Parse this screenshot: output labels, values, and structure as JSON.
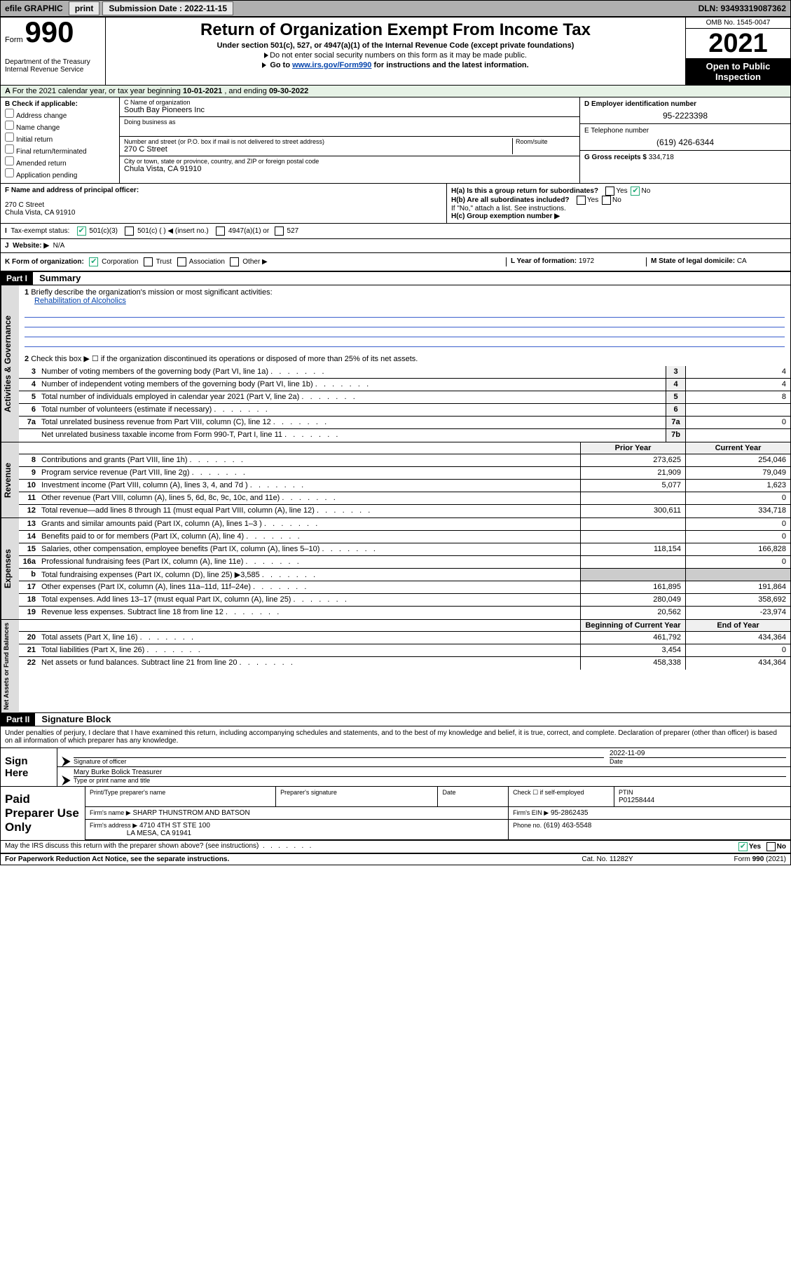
{
  "topbar": {
    "efile_label": "efile GRAPHIC",
    "print_btn": "print",
    "submission_label": "Submission Date : 2022-11-15",
    "dln_label": "DLN: 93493319087362"
  },
  "header": {
    "form_word": "Form",
    "form_number": "990",
    "dept1": "Department of the Treasury",
    "dept2": "Internal Revenue Service",
    "title": "Return of Organization Exempt From Income Tax",
    "subtitle": "Under section 501(c), 527, or 4947(a)(1) of the Internal Revenue Code (except private foundations)",
    "note1": "Do not enter social security numbers on this form as it may be made public.",
    "note2_pre": "Go to ",
    "note2_link": "www.irs.gov/Form990",
    "note2_post": " for instructions and the latest information.",
    "omb": "OMB No. 1545-0047",
    "year": "2021",
    "open_pub": "Open to Public Inspection"
  },
  "row_a": {
    "text_pre": "For the 2021 calendar year, or tax year beginning ",
    "beg": "10-01-2021",
    "mid": " , and ending ",
    "end": "09-30-2022"
  },
  "col_b": {
    "heading": "B Check if applicable:",
    "items": [
      "Address change",
      "Name change",
      "Initial return",
      "Final return/terminated",
      "Amended return",
      "Application pending"
    ]
  },
  "col_c": {
    "c_label": "C Name of organization",
    "c_value": "South Bay Pioneers Inc",
    "dba_label": "Doing business as",
    "dba_value": "",
    "addr_label": "Number and street (or P.O. box if mail is not delivered to street address)",
    "room_label": "Room/suite",
    "addr_value": "270 C Street",
    "city_label": "City or town, state or province, country, and ZIP or foreign postal code",
    "city_value": "Chula Vista, CA  91910"
  },
  "col_d": {
    "d_label": "D Employer identification number",
    "d_value": "95-2223398",
    "e_label": "E Telephone number",
    "e_value": "(619) 426-6344",
    "g_label": "G Gross receipts $",
    "g_value": "334,718"
  },
  "fgh": {
    "f_label": "F Name and address of principal officer:",
    "f_addr1": "270 C Street",
    "f_addr2": "Chula Vista, CA  91910",
    "ha_label": "H(a)  Is this a group return for subordinates?",
    "hb_label": "H(b)  Are all subordinates included?",
    "hb_note": "If \"No,\" attach a list. See instructions.",
    "hc_label": "H(c)  Group exemption number ▶",
    "yes": "Yes",
    "no": "No"
  },
  "ij": {
    "i_label": "Tax-exempt status:",
    "i_501c3": "501(c)(3)",
    "i_501c": "501(c) (   ) ◀ (insert no.)",
    "i_4947": "4947(a)(1) or",
    "i_527": "527",
    "j_label": "Website: ▶",
    "j_value": "N/A"
  },
  "klm": {
    "k_label": "K Form of organization:",
    "k_corp": "Corporation",
    "k_trust": "Trust",
    "k_assoc": "Association",
    "k_other": "Other ▶",
    "l_label": "L Year of formation:",
    "l_value": "1972",
    "m_label": "M State of legal domicile:",
    "m_value": "CA"
  },
  "part1": {
    "hdr": "Part I",
    "title": "Summary",
    "q1_label": "Briefly describe the organization's mission or most significant activities:",
    "q1_value": "Rehabilitation of Alcoholics",
    "q2_label": "Check this box ▶ ☐  if the organization discontinued its operations or disposed of more than 25% of its net assets.",
    "tabs": {
      "gov": "Activities & Governance",
      "rev": "Revenue",
      "exp": "Expenses",
      "net": "Net Assets or Fund Balances"
    },
    "col_prior": "Prior Year",
    "col_curr": "Current Year",
    "col_beg": "Beginning of Current Year",
    "col_end": "End of Year",
    "gov_lines": [
      {
        "n": "3",
        "t": "Number of voting members of the governing body (Part VI, line 1a)",
        "box": "3",
        "v": "4"
      },
      {
        "n": "4",
        "t": "Number of independent voting members of the governing body (Part VI, line 1b)",
        "box": "4",
        "v": "4"
      },
      {
        "n": "5",
        "t": "Total number of individuals employed in calendar year 2021 (Part V, line 2a)",
        "box": "5",
        "v": "8"
      },
      {
        "n": "6",
        "t": "Total number of volunteers (estimate if necessary)",
        "box": "6",
        "v": ""
      },
      {
        "n": "7a",
        "t": "Total unrelated business revenue from Part VIII, column (C), line 12",
        "box": "7a",
        "v": "0"
      },
      {
        "n": "",
        "t": "Net unrelated business taxable income from Form 990-T, Part I, line 11",
        "box": "7b",
        "v": ""
      }
    ],
    "rev_lines": [
      {
        "n": "8",
        "t": "Contributions and grants (Part VIII, line 1h)",
        "p": "273,625",
        "c": "254,046"
      },
      {
        "n": "9",
        "t": "Program service revenue (Part VIII, line 2g)",
        "p": "21,909",
        "c": "79,049"
      },
      {
        "n": "10",
        "t": "Investment income (Part VIII, column (A), lines 3, 4, and 7d )",
        "p": "5,077",
        "c": "1,623"
      },
      {
        "n": "11",
        "t": "Other revenue (Part VIII, column (A), lines 5, 6d, 8c, 9c, 10c, and 11e)",
        "p": "",
        "c": "0"
      },
      {
        "n": "12",
        "t": "Total revenue—add lines 8 through 11 (must equal Part VIII, column (A), line 12)",
        "p": "300,611",
        "c": "334,718"
      }
    ],
    "exp_lines": [
      {
        "n": "13",
        "t": "Grants and similar amounts paid (Part IX, column (A), lines 1–3 )",
        "p": "",
        "c": "0"
      },
      {
        "n": "14",
        "t": "Benefits paid to or for members (Part IX, column (A), line 4)",
        "p": "",
        "c": "0"
      },
      {
        "n": "15",
        "t": "Salaries, other compensation, employee benefits (Part IX, column (A), lines 5–10)",
        "p": "118,154",
        "c": "166,828"
      },
      {
        "n": "16a",
        "t": "Professional fundraising fees (Part IX, column (A), line 11e)",
        "p": "",
        "c": "0"
      },
      {
        "n": "b",
        "t": "Total fundraising expenses (Part IX, column (D), line 25) ▶3,585",
        "p": "GRAY",
        "c": "GRAY"
      },
      {
        "n": "17",
        "t": "Other expenses (Part IX, column (A), lines 11a–11d, 11f–24e)",
        "p": "161,895",
        "c": "191,864"
      },
      {
        "n": "18",
        "t": "Total expenses. Add lines 13–17 (must equal Part IX, column (A), line 25)",
        "p": "280,049",
        "c": "358,692"
      },
      {
        "n": "19",
        "t": "Revenue less expenses. Subtract line 18 from line 12",
        "p": "20,562",
        "c": "-23,974"
      }
    ],
    "net_lines": [
      {
        "n": "20",
        "t": "Total assets (Part X, line 16)",
        "p": "461,792",
        "c": "434,364"
      },
      {
        "n": "21",
        "t": "Total liabilities (Part X, line 26)",
        "p": "3,454",
        "c": "0"
      },
      {
        "n": "22",
        "t": "Net assets or fund balances. Subtract line 21 from line 20",
        "p": "458,338",
        "c": "434,364"
      }
    ]
  },
  "part2": {
    "hdr": "Part II",
    "title": "Signature Block",
    "decl": "Under penalties of perjury, I declare that I have examined this return, including accompanying schedules and statements, and to the best of my knowledge and belief, it is true, correct, and complete. Declaration of preparer (other than officer) is based on all information of which preparer has any knowledge.",
    "sign_here": "Sign Here",
    "sig_officer_lbl": "Signature of officer",
    "sig_date_lbl": "Date",
    "sig_date_val": "2022-11-09",
    "sig_name_val": "Mary Burke Bolick  Treasurer",
    "sig_name_lbl": "Type or print name and title",
    "paid_prep": "Paid Preparer Use Only",
    "pp_name_lbl": "Print/Type preparer's name",
    "pp_sig_lbl": "Preparer's signature",
    "pp_date_lbl": "Date",
    "pp_check_lbl": "Check ☐ if self-employed",
    "pp_ptin_lbl": "PTIN",
    "pp_ptin_val": "P01258444",
    "firm_name_lbl": "Firm's name    ▶",
    "firm_name_val": "SHARP THUNSTROM AND BATSON",
    "firm_ein_lbl": "Firm's EIN ▶",
    "firm_ein_val": "95-2862435",
    "firm_addr_lbl": "Firm's address ▶",
    "firm_addr_val1": "4710 4TH ST STE 100",
    "firm_addr_val2": "LA MESA, CA  91941",
    "firm_phone_lbl": "Phone no.",
    "firm_phone_val": "(619) 463-5548",
    "irs_discuss": "May the IRS discuss this return with the preparer shown above? (see instructions)"
  },
  "footer": {
    "pra": "For Paperwork Reduction Act Notice, see the separate instructions.",
    "cat": "Cat. No. 11282Y",
    "form": "Form 990 (2021)"
  },
  "colors": {
    "topbar_bg": "#b0b0b0",
    "link": "#0645ad",
    "green_chk": "#2a7a2a",
    "rule_blue": "#3a5fcd",
    "gray_cell": "#cccccc",
    "row_a_bg": "#e6f2e6"
  }
}
